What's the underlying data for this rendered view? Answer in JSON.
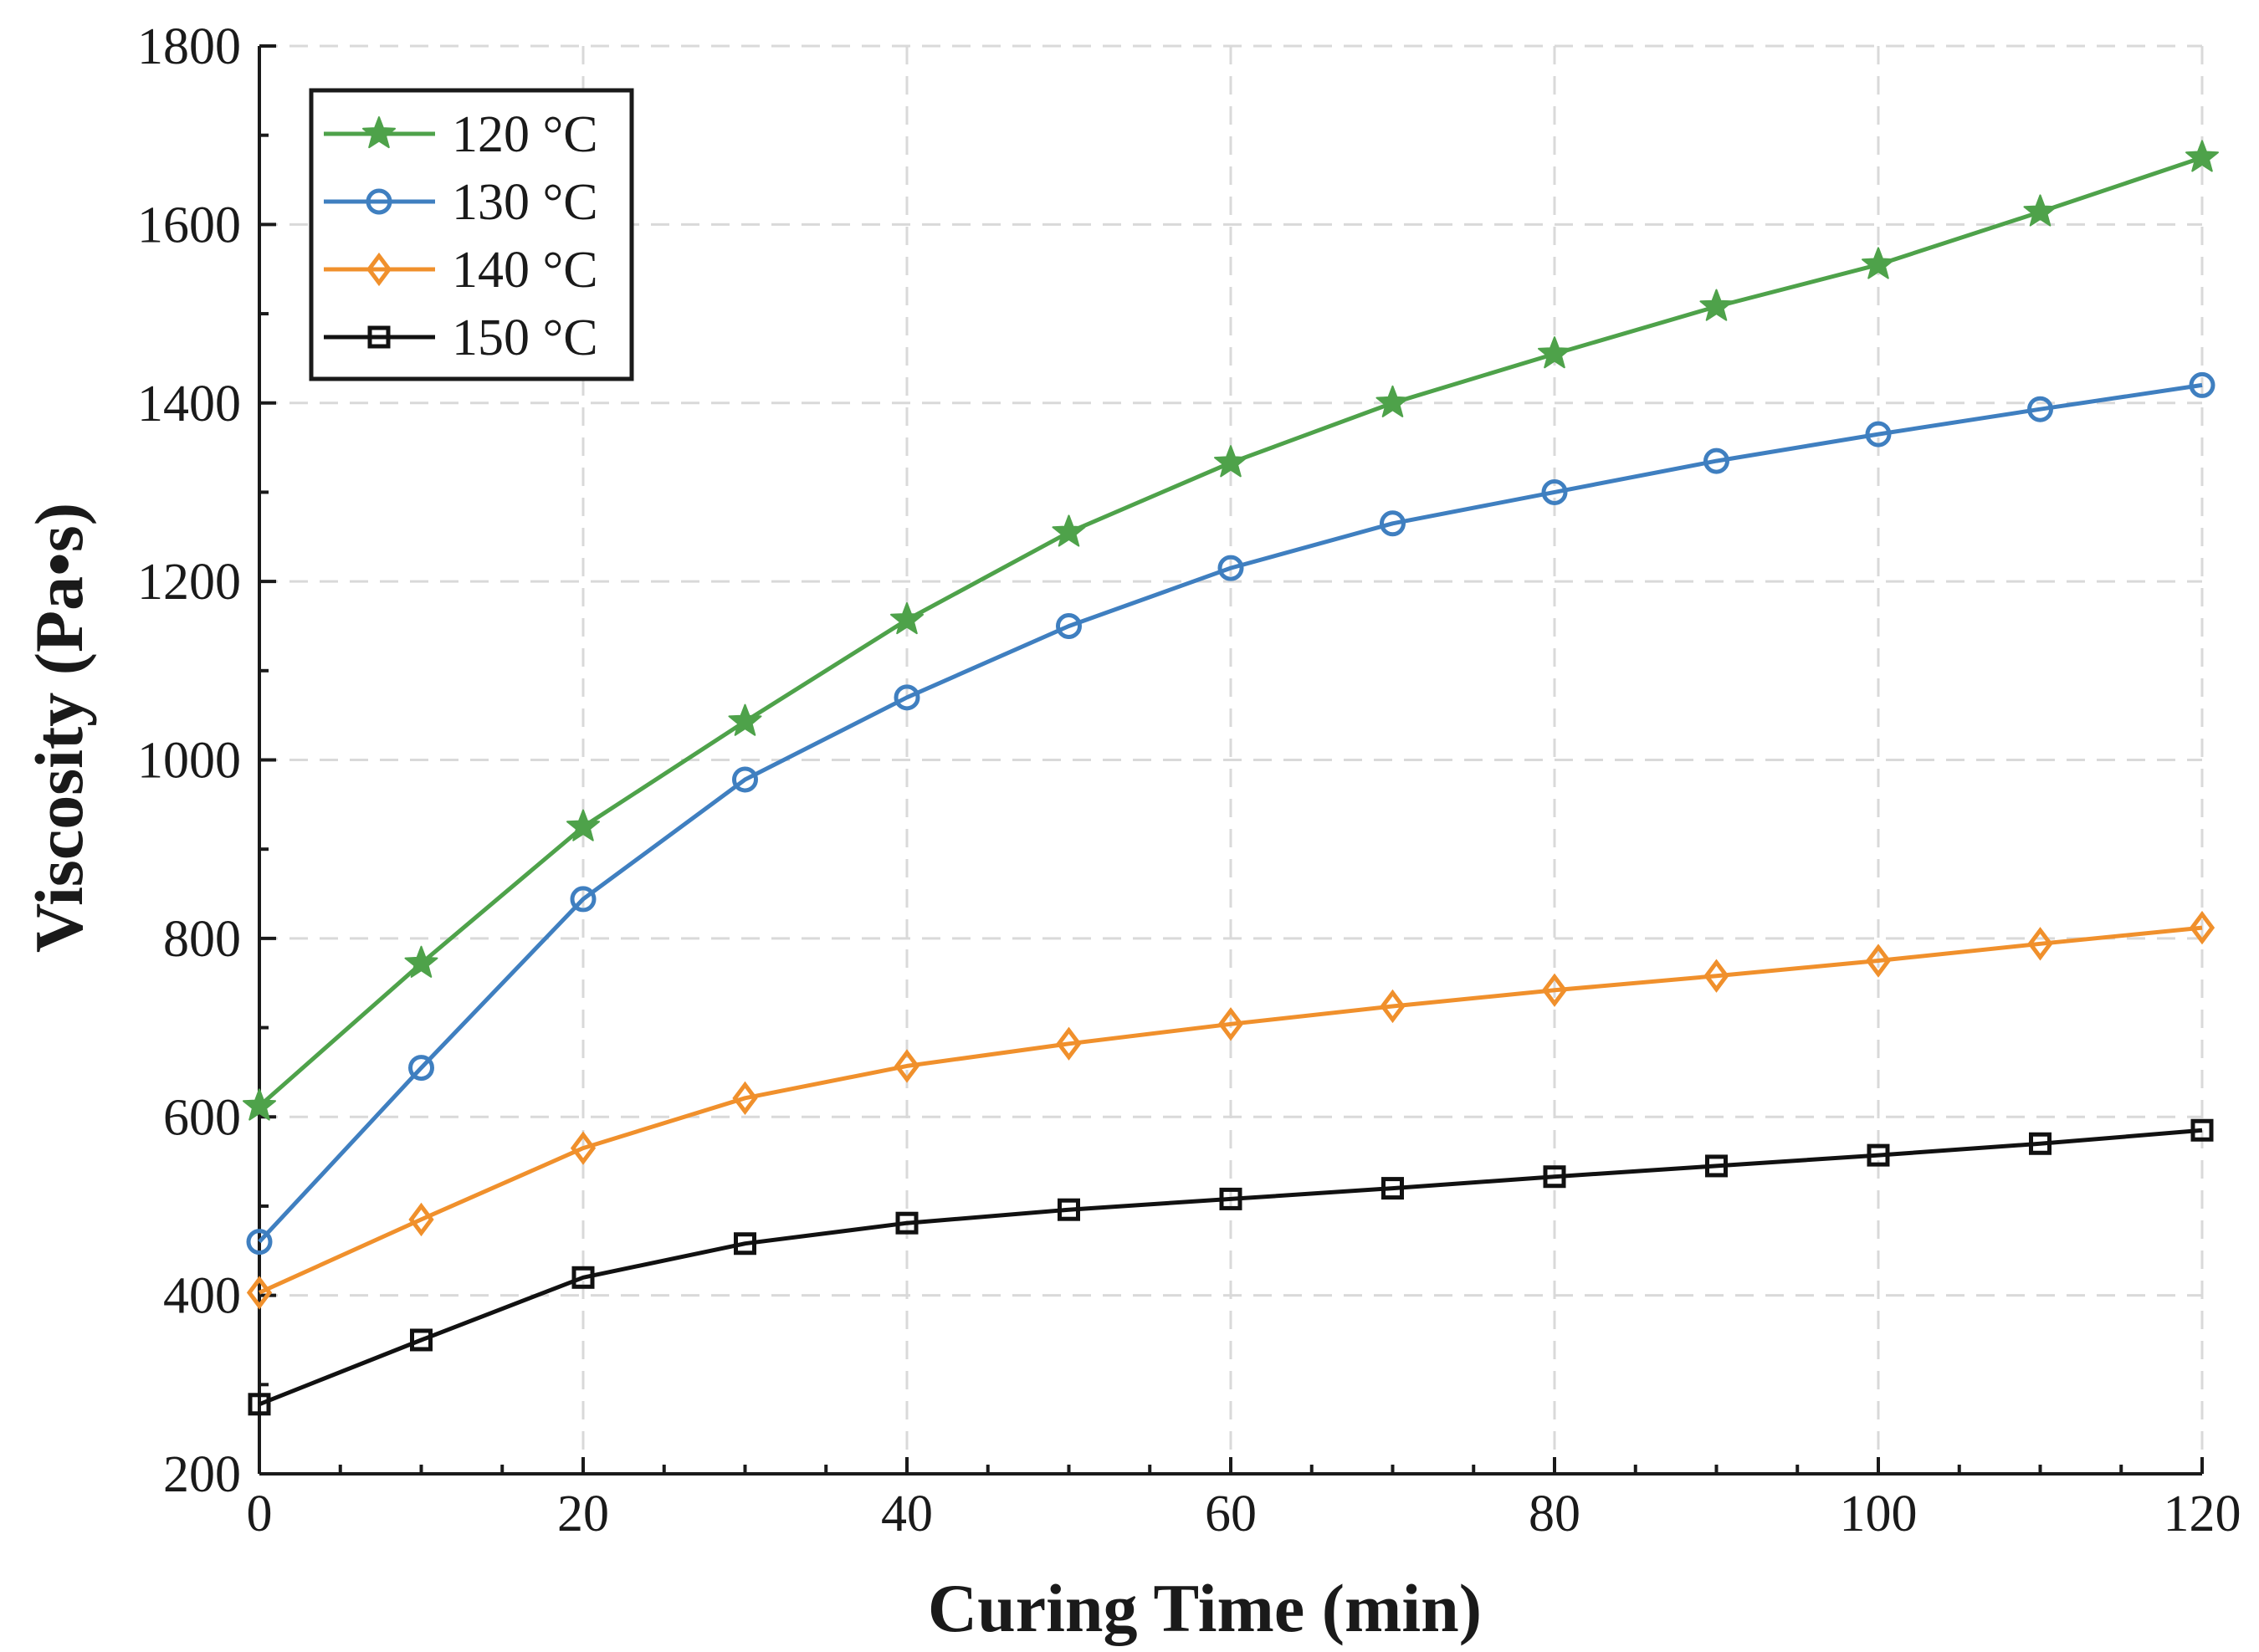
{
  "chart_data": {
    "type": "line",
    "title": "",
    "xlabel": "Curing Time (min)",
    "ylabel": "Viscosity (Pa•s)",
    "xlim": [
      0,
      120
    ],
    "ylim": [
      200,
      1800
    ],
    "x_ticks": [
      0,
      20,
      40,
      60,
      80,
      100,
      120
    ],
    "x_tick_labels": [
      "0",
      "20",
      "40",
      "60",
      "80",
      "100",
      "120"
    ],
    "y_ticks": [
      200,
      400,
      600,
      800,
      1000,
      1200,
      1400,
      1600,
      1800
    ],
    "y_tick_labels": [
      "200",
      "400",
      "600",
      "800",
      "1000",
      "1200",
      "1400",
      "1600",
      "1800"
    ],
    "grid": true,
    "legend_position": "top-left",
    "x": [
      0,
      10,
      20,
      30,
      40,
      50,
      60,
      70,
      80,
      90,
      100,
      110,
      120
    ],
    "series": [
      {
        "name": "120 °C",
        "color": "#4ea24a",
        "marker": "star",
        "values": [
          612,
          772,
          925,
          1043,
          1157,
          1255,
          1333,
          1400,
          1455,
          1508,
          1555,
          1614,
          1675
        ]
      },
      {
        "name": "130 °C",
        "color": "#3f7fc0",
        "marker": "circle",
        "values": [
          460,
          655,
          844,
          978,
          1070,
          1150,
          1215,
          1265,
          1300,
          1335,
          1365,
          1393,
          1420
        ]
      },
      {
        "name": "140 °C",
        "color": "#f0902c",
        "marker": "diamond",
        "values": [
          403,
          485,
          565,
          621,
          657,
          682,
          704,
          724,
          742,
          758,
          775,
          794,
          812
        ]
      },
      {
        "name": "150 °C",
        "color": "#111111",
        "marker": "square",
        "values": [
          278,
          350,
          420,
          458,
          481,
          496,
          508,
          520,
          533,
          545,
          557,
          570,
          585
        ]
      }
    ]
  }
}
